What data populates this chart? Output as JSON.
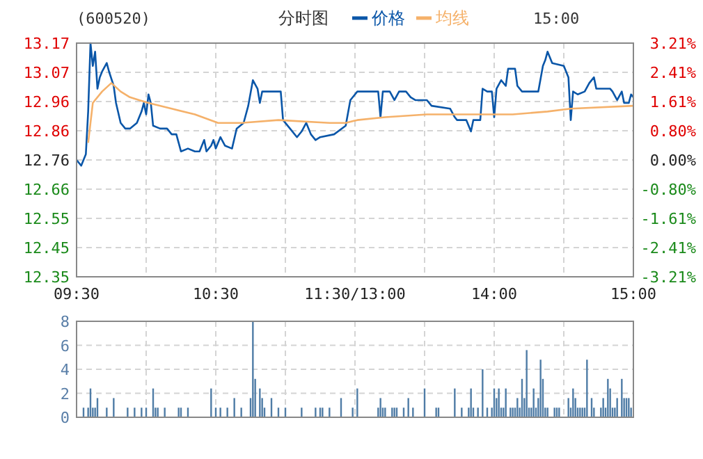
{
  "chart_data": [
    {
      "type": "line",
      "title": "(600520)",
      "subtitle": "分时图",
      "annotations": [
        "15:00"
      ],
      "legend": "top",
      "grid": true,
      "categories": [
        "09:30",
        null,
        null,
        null,
        null,
        null,
        null,
        null,
        null,
        null,
        null,
        null,
        null,
        null,
        null,
        null,
        null,
        null,
        null,
        null,
        null,
        null,
        null,
        null,
        null,
        null,
        null,
        null,
        null,
        null,
        null,
        null,
        null,
        null,
        null,
        null,
        null,
        null,
        null,
        null,
        null,
        null,
        null,
        null,
        null,
        null,
        null,
        null,
        null,
        null,
        null,
        null,
        null,
        null,
        null,
        null,
        null,
        null,
        null,
        null,
        "10:30",
        null,
        null,
        null,
        null,
        null,
        null,
        null,
        null,
        null,
        null,
        null,
        null,
        null,
        null,
        null,
        null,
        null,
        null,
        null,
        null,
        null,
        null,
        null,
        null,
        null,
        null,
        null,
        null,
        null,
        null,
        null,
        null,
        null,
        null,
        null,
        null,
        null,
        null,
        null,
        null,
        null,
        null,
        null,
        null,
        null,
        null,
        null,
        null,
        null,
        null,
        null,
        null,
        null,
        null,
        null,
        null,
        null,
        null,
        null,
        "11:30/13:00",
        null,
        null,
        null,
        null,
        null,
        null,
        null,
        null,
        null,
        null,
        null,
        null,
        null,
        null,
        null,
        null,
        null,
        null,
        null,
        null,
        null,
        null,
        null,
        null,
        null,
        null,
        null,
        null,
        null,
        null,
        null,
        null,
        null,
        null,
        null,
        null,
        null,
        null,
        null,
        null,
        null,
        null,
        null,
        null,
        null,
        null,
        null,
        null,
        null,
        null,
        null,
        null,
        null,
        null,
        null,
        null,
        null,
        null,
        null,
        "14:00",
        null,
        null,
        null,
        null,
        null,
        null,
        null,
        null,
        null,
        null,
        null,
        null,
        null,
        null,
        null,
        null,
        null,
        null,
        null,
        null,
        null,
        null,
        null,
        null,
        null,
        null,
        null,
        null,
        null,
        null,
        null,
        null,
        null,
        null,
        null,
        null,
        null,
        null,
        null,
        null,
        null,
        null,
        null,
        null,
        null,
        null,
        null,
        null,
        null,
        null,
        null,
        null,
        null,
        null,
        null,
        null,
        null,
        null,
        null,
        "15:00"
      ],
      "ylim": [
        12.35,
        13.17
      ],
      "yticks": [
        {
          "value": 12.35,
          "label": "12.35"
        },
        {
          "value": 12.4525,
          "label": "12.45"
        },
        {
          "value": 12.555,
          "label": "12.55"
        },
        {
          "value": 12.6575,
          "label": "12.66"
        },
        {
          "value": 12.76,
          "label": "12.76"
        },
        {
          "value": 12.8625,
          "label": "12.86"
        },
        {
          "value": 12.965,
          "label": "12.96"
        },
        {
          "value": 13.0675,
          "label": "13.07"
        },
        {
          "value": 13.17,
          "label": "13.17"
        }
      ],
      "y2lim": [
        -3.21,
        3.21
      ],
      "y2ticks": [
        {
          "value": -3.21,
          "label": "-3.21%"
        },
        {
          "value": -2.4075,
          "label": "-2.41%"
        },
        {
          "value": -1.605,
          "label": "-1.61%"
        },
        {
          "value": -0.8025,
          "label": "-0.80%"
        },
        {
          "value": 0,
          "label": "0.00%"
        },
        {
          "value": 0.8025,
          "label": "0.80%"
        },
        {
          "value": 1.605,
          "label": "1.61%"
        },
        {
          "value": 2.4075,
          "label": "2.41%"
        },
        {
          "value": 3.21,
          "label": "3.21%"
        }
      ],
      "series": [
        {
          "name": "价格",
          "color": "#0a56a8",
          "values": [
            12.76,
            null,
            12.74,
            null,
            12.78,
            12.93,
            13.17,
            13.09,
            13.14,
            13.01,
            13.05,
            13.07,
            null,
            13.1,
            13.07,
            null,
            13.02,
            12.96,
            null,
            12.89,
            null,
            12.87,
            null,
            12.87,
            null,
            null,
            12.89,
            null,
            12.93,
            12.96,
            12.92,
            12.99,
            12.96,
            12.88,
            null,
            null,
            12.87,
            null,
            null,
            12.87,
            null,
            12.85,
            null,
            12.85,
            null,
            12.79,
            null,
            null,
            12.8,
            null,
            null,
            12.79,
            null,
            12.79,
            null,
            12.83,
            12.79,
            null,
            12.81,
            12.83,
            12.8,
            null,
            12.84,
            null,
            12.81,
            null,
            null,
            12.8,
            null,
            12.87,
            null,
            null,
            12.89,
            null,
            12.95,
            null,
            13.04,
            null,
            13.01,
            12.96,
            13.0,
            null,
            null,
            null,
            null,
            null,
            null,
            13.0,
            13.0,
            12.9,
            null,
            null,
            12.87,
            null,
            null,
            12.84,
            null,
            12.86,
            null,
            12.89,
            null,
            12.85,
            null,
            12.83,
            null,
            12.84,
            null,
            null,
            null,
            null,
            null,
            12.85,
            null,
            null,
            null,
            null,
            12.88,
            null,
            12.97,
            null,
            null,
            13.0,
            null,
            null,
            13.0,
            null,
            null,
            null,
            null,
            null,
            13.0,
            12.91,
            13.0,
            null,
            null,
            13.0,
            null,
            12.97,
            null,
            13.0,
            null,
            null,
            13.0,
            null,
            12.98,
            null,
            12.97,
            null,
            null,
            null,
            null,
            12.97,
            null,
            12.95,
            null,
            null,
            null,
            null,
            null,
            null,
            null,
            12.94,
            null,
            12.91,
            12.9,
            null,
            null,
            null,
            12.9,
            null,
            12.86,
            12.9,
            null,
            null,
            12.9,
            13.01,
            null,
            13.0,
            null,
            13.0,
            12.91,
            13.01,
            null,
            13.04,
            null,
            13.02,
            13.08,
            null,
            null,
            13.08,
            13.02,
            null,
            13.0,
            null,
            null,
            null,
            null,
            null,
            null,
            13.0,
            null,
            13.09,
            13.11,
            13.14,
            null,
            13.1,
            null,
            null,
            null,
            null,
            13.09,
            null,
            13.05,
            12.9,
            13.0,
            null,
            12.99,
            null,
            null,
            13.0,
            null,
            13.03,
            null,
            13.05,
            13.01,
            null,
            null,
            null,
            null,
            null,
            13.01,
            13.0,
            null,
            12.97,
            null,
            13.0,
            12.96,
            null,
            12.96,
            12.99,
            12.98
          ]
        },
        {
          "name": "均线",
          "color": "#f5b16a",
          "values": [
            null,
            null,
            null,
            null,
            null,
            12.82,
            null,
            12.96,
            null,
            null,
            null,
            13.0,
            null,
            null,
            null,
            13.03,
            null,
            null,
            null,
            13.0,
            null,
            null,
            null,
            12.98,
            null,
            null,
            null,
            12.97,
            null,
            null,
            null,
            12.96,
            null,
            null,
            null,
            null,
            null,
            null,
            null,
            null,
            null,
            12.94,
            null,
            null,
            null,
            null,
            null,
            null,
            null,
            null,
            null,
            12.92,
            null,
            null,
            null,
            null,
            null,
            null,
            null,
            null,
            null,
            12.89,
            null,
            null,
            null,
            null,
            null,
            null,
            null,
            null,
            null,
            12.89,
            null,
            null,
            null,
            null,
            null,
            null,
            null,
            null,
            null,
            null,
            null,
            null,
            null,
            null,
            null,
            12.9,
            null,
            null,
            null,
            null,
            null,
            null,
            null,
            null,
            null,
            null,
            null,
            null,
            null,
            null,
            null,
            null,
            null,
            null,
            null,
            null,
            null,
            12.89,
            null,
            null,
            null,
            null,
            null,
            null,
            12.89,
            null,
            null,
            null,
            null,
            12.9,
            null,
            null,
            null,
            null,
            null,
            null,
            null,
            null,
            null,
            null,
            null,
            12.91,
            null,
            null,
            null,
            null,
            null,
            null,
            null,
            null,
            null,
            null,
            null,
            null,
            null,
            null,
            null,
            null,
            null,
            12.92,
            null,
            null,
            null,
            null,
            null,
            null,
            null,
            null,
            null,
            null,
            null,
            12.92,
            null,
            null,
            null,
            null,
            null,
            null,
            null,
            null,
            null,
            null,
            null,
            null,
            null,
            null,
            null,
            null,
            null,
            null,
            null,
            null,
            null,
            null,
            null,
            null,
            12.92,
            null,
            null,
            null,
            null,
            null,
            null,
            null,
            null,
            null,
            null,
            null,
            null,
            null,
            null,
            12.93,
            null,
            null,
            null,
            null,
            null,
            null,
            null,
            null,
            null,
            12.94,
            null,
            null,
            null,
            null,
            null,
            null,
            null,
            null,
            null,
            null,
            null,
            null,
            null,
            null,
            null,
            null,
            null,
            null,
            null,
            null,
            null,
            null,
            null,
            null,
            null,
            null,
            12.95
          ]
        }
      ]
    },
    {
      "type": "bar",
      "grid": true,
      "tick_labels": "y",
      "ylim": [
        0,
        8
      ],
      "yticks": [
        0,
        2,
        4,
        6,
        8
      ],
      "color": "#4f7ca6",
      "categories": [
        null,
        null,
        null,
        null,
        null,
        null,
        null,
        null,
        null,
        null,
        null,
        null,
        null,
        null,
        null,
        null,
        null,
        null,
        null,
        null,
        null,
        null,
        null,
        null,
        null,
        null,
        null,
        null,
        null,
        null,
        null,
        null,
        null,
        null,
        null,
        null,
        null,
        null,
        null,
        null,
        null,
        null,
        null,
        null,
        null,
        null,
        null,
        null,
        null,
        null,
        null,
        null,
        null,
        null,
        null,
        null,
        null,
        null,
        null,
        null,
        null,
        null,
        null,
        null,
        null,
        null,
        null,
        null,
        null,
        null,
        null,
        null,
        null,
        null,
        null,
        null,
        null,
        null,
        null,
        null,
        null,
        null,
        null,
        null,
        null,
        null,
        null,
        null,
        null,
        null,
        null,
        null,
        null,
        null,
        null,
        null,
        null,
        null,
        null,
        null,
        null,
        null,
        null,
        null,
        null,
        null,
        null,
        null,
        null,
        null,
        null,
        null,
        null,
        null,
        null,
        null,
        null,
        null,
        null,
        null,
        null,
        null,
        null,
        null,
        null,
        null,
        null,
        null,
        null,
        null,
        null,
        null,
        null,
        null,
        null,
        null,
        null,
        null,
        null,
        null,
        null,
        null,
        null,
        null,
        null,
        null,
        null,
        null,
        null,
        null,
        null,
        null,
        null,
        null,
        null,
        null,
        null,
        null,
        null,
        null,
        null,
        null,
        null,
        null,
        null,
        null,
        null,
        null,
        null,
        null,
        null,
        null,
        null,
        null,
        null,
        null,
        null,
        null,
        null,
        null,
        null,
        null,
        null,
        null,
        null,
        null,
        null,
        null,
        null,
        null,
        null,
        null,
        null,
        null,
        null,
        null,
        null,
        null,
        null,
        null,
        null,
        null,
        null,
        null,
        null,
        null,
        null,
        null,
        null,
        null,
        null,
        null,
        null,
        null,
        null,
        null,
        null,
        null,
        null,
        null,
        null,
        null,
        null,
        null,
        null,
        null,
        null,
        null,
        null,
        null,
        null,
        null,
        null,
        null,
        null,
        null,
        null,
        null,
        null,
        null,
        null
      ],
      "values": [
        null,
        null,
        null,
        0.8,
        null,
        0.8,
        2.4,
        0.8,
        0.8,
        1.6,
        null,
        null,
        null,
        0.8,
        null,
        null,
        1.6,
        null,
        null,
        null,
        null,
        null,
        0.8,
        null,
        null,
        0.8,
        null,
        null,
        0.8,
        null,
        0.8,
        null,
        null,
        2.4,
        0.8,
        0.8,
        null,
        null,
        0.8,
        null,
        null,
        null,
        null,
        null,
        0.8,
        0.8,
        null,
        null,
        0.8,
        null,
        null,
        null,
        null,
        null,
        null,
        null,
        null,
        null,
        2.4,
        null,
        0.8,
        null,
        0.8,
        null,
        null,
        0.8,
        null,
        null,
        1.6,
        null,
        null,
        0.8,
        null,
        null,
        null,
        1.6,
        8,
        3.2,
        null,
        2.4,
        1.6,
        0.8,
        null,
        null,
        1.6,
        null,
        null,
        0.8,
        null,
        null,
        0.8,
        null,
        null,
        null,
        null,
        null,
        null,
        0.8,
        null,
        null,
        null,
        null,
        null,
        0.8,
        null,
        0.8,
        0.8,
        null,
        null,
        0.8,
        null,
        null,
        null,
        null,
        1.6,
        null,
        null,
        null,
        null,
        0.8,
        null,
        2.4,
        null,
        null,
        null,
        null,
        null,
        null,
        null,
        null,
        0.8,
        1.6,
        0.8,
        0.8,
        null,
        null,
        0.8,
        0.8,
        0.8,
        null,
        null,
        0.8,
        null,
        1.6,
        null,
        0.8,
        null,
        null,
        null,
        null,
        2.4,
        null,
        null,
        null,
        null,
        0.8,
        0.8,
        null,
        null,
        null,
        null,
        null,
        null,
        2.4,
        null,
        null,
        0.8,
        null,
        null,
        0.8,
        2.4,
        0.8,
        null,
        0.8,
        null,
        4,
        null,
        0.8,
        null,
        0.8,
        2.4,
        1.6,
        2.4,
        0.8,
        0.8,
        2.4,
        null,
        0.8,
        0.8,
        0.8,
        1.6,
        0.8,
        3.2,
        1.6,
        5.6,
        0.8,
        0.8,
        2.4,
        0.8,
        1.6,
        4.8,
        3.2,
        0.8,
        0.8,
        null,
        null,
        0.8,
        0.8,
        0.8,
        null,
        null,
        null,
        1.6,
        0.8,
        2.4,
        1.6,
        0.8,
        0.8,
        0.8,
        0.8,
        4.8,
        null,
        1.6,
        0.8,
        null,
        null,
        0.8,
        1.6,
        0.8,
        3.2,
        2.4,
        0.8,
        0.8,
        1.6,
        null,
        3.2,
        1.6,
        1.6,
        1.6,
        0.8,
        null
      ]
    }
  ]
}
